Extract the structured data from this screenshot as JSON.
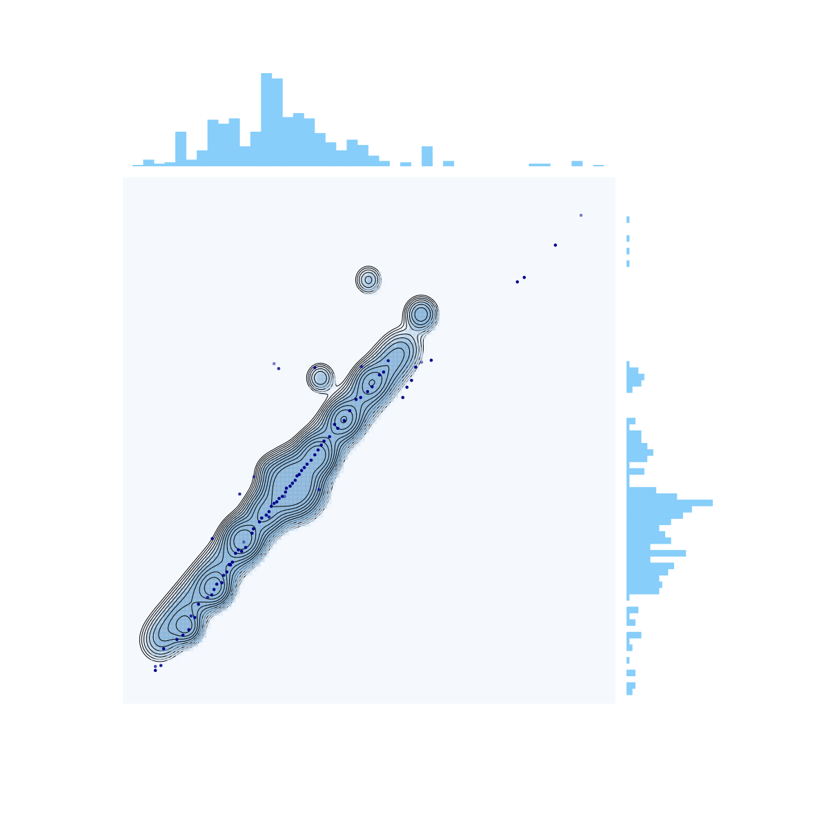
{
  "chart_data": {
    "type": "scatter",
    "title": "",
    "xlabel": "",
    "ylabel": "",
    "axes_visible": false,
    "grid": false,
    "xlim": [
      0,
      100
    ],
    "ylim": [
      0,
      100
    ],
    "colors": {
      "histogram": "#87cefa",
      "points": "#00008b",
      "contour_line": "#000000",
      "plot_background": "#f5f9fe",
      "kde_fill_low": "#eef4fb",
      "kde_fill_high": "#4a8ec4"
    },
    "scatter": {
      "x": [
        3.5,
        3.5,
        4.7,
        5.3,
        8.2,
        9.5,
        10.8,
        11.3,
        12.1,
        12.9,
        14.9,
        15.8,
        16.3,
        16.9,
        18.0,
        18.4,
        19.1,
        19.6,
        19.9,
        20.3,
        21.0,
        21.6,
        22.3,
        23.2,
        22.8,
        24.6,
        24.9,
        26.2,
        26.7,
        27.7,
        28.3,
        28.8,
        29.4,
        30.0,
        30.5,
        31.2,
        31.9,
        32.1,
        32.9,
        33.4,
        34.0,
        34.4,
        34.9,
        35.4,
        36.0,
        36.6,
        37.5,
        38.3,
        39.0,
        39.7,
        40.3,
        41.5,
        42.6,
        43.3,
        44.7,
        45.9,
        47.3,
        48.3,
        49.8,
        50.8,
        52.4,
        53.3,
        54.3,
        57.5,
        58.4,
        59.4,
        60.3,
        61.6,
        63.7,
        82.5,
        84.0,
        90.8,
        96.4,
        15.9,
        21.9,
        25.0,
        28.3,
        31.7,
        38.3,
        29.4,
        30.4,
        48.5,
        39.2
      ],
      "y": [
        4.1,
        3.3,
        4.3,
        7.7,
        9.6,
        10.5,
        11.6,
        14.4,
        14.1,
        16.8,
        18.2,
        18.7,
        19.8,
        20.9,
        21.2,
        22.7,
        23.4,
        24.9,
        24.8,
        25.4,
        27.2,
        27.9,
        27.6,
        28.4,
        29.5,
        31.3,
        32.2,
        33.6,
        34.4,
        35.0,
        35.7,
        36.8,
        37.4,
        37.7,
        38.4,
        38.8,
        39.7,
        40.5,
        40.9,
        41.5,
        42.1,
        43.0,
        43.3,
        44.1,
        44.7,
        45.4,
        46.2,
        47.3,
        48.3,
        49.3,
        50.1,
        51.0,
        53.5,
        52.7,
        54.3,
        56.3,
        58.6,
        59.0,
        60.2,
        61.2,
        63.6,
        64.2,
        66.5,
        59.0,
        61.1,
        62.5,
        65.2,
        66.2,
        66.6,
        82.6,
        83.5,
        90.1,
        96.2,
        30.2,
        39.3,
        42.8,
        34.6,
        38.8,
        65.1,
        65.9,
        64.9,
        65.3,
        40.2
      ],
      "alpha": [
        0.7,
        1,
        0.9,
        1,
        1,
        1,
        1,
        0.8,
        1,
        1,
        0.8,
        1,
        1,
        1,
        1,
        0.9,
        1,
        1,
        1,
        1,
        1,
        1,
        1,
        1,
        0.5,
        1,
        1,
        1,
        1,
        1,
        1,
        1,
        1,
        1,
        1,
        1,
        1,
        1,
        1,
        1,
        0.9,
        1,
        1,
        1,
        1,
        1,
        1,
        1,
        1,
        1,
        1,
        1,
        1,
        1,
        1,
        1,
        1,
        1,
        1,
        1,
        1,
        1,
        0.9,
        1,
        1,
        1,
        1,
        0.5,
        1,
        1,
        1,
        1,
        0.5,
        0.9,
        0.8,
        0.6,
        0.8,
        0.5,
        0.9,
        0.5,
        0.8,
        0.8,
        0.7
      ]
    },
    "contour_peaks": [
      {
        "x": 33.5,
        "y": 41.0,
        "weight": 0.85,
        "sigma": 3.2
      },
      {
        "x": 22.5,
        "y": 30.0,
        "weight": 0.45,
        "sigma": 2.2
      },
      {
        "x": 27.5,
        "y": 35.5,
        "weight": 0.22,
        "sigma": 2.2
      },
      {
        "x": 38.8,
        "y": 47.0,
        "weight": 0.45,
        "sigma": 2.2
      },
      {
        "x": 16.5,
        "y": 20.0,
        "weight": 0.32,
        "sigma": 2.0
      },
      {
        "x": 10.5,
        "y": 12.0,
        "weight": 0.22,
        "sigma": 1.8
      },
      {
        "x": 44.6,
        "y": 54.5,
        "weight": 0.3,
        "sigma": 2.0
      },
      {
        "x": 50.5,
        "y": 62.2,
        "weight": 0.18,
        "sigma": 2.0
      },
      {
        "x": 39.5,
        "y": 63.0,
        "weight": 0.12,
        "sigma": 1.8
      },
      {
        "x": 61.5,
        "y": 76.0,
        "weight": 0.2,
        "sigma": 2.0
      },
      {
        "x": 50.0,
        "y": 83.0,
        "weight": 0.1,
        "sigma": 1.8
      },
      {
        "x": 28.3,
        "y": 44.3,
        "weight": 0.06,
        "sigma": 1.6
      }
    ],
    "marginal_x_hist": {
      "counts": [
        1,
        5,
        2,
        3,
        26,
        5,
        12,
        35,
        32,
        36,
        15,
        26,
        70,
        66,
        37,
        40,
        36,
        25,
        18,
        12,
        20,
        16,
        8,
        4,
        0,
        3,
        0,
        15,
        0,
        4,
        0,
        0,
        0,
        0,
        0,
        0,
        0,
        2,
        2,
        0,
        0,
        4,
        0,
        1
      ]
    },
    "marginal_y_hist": {
      "counts": [
        2,
        3,
        0,
        3,
        0,
        1,
        0,
        2,
        1,
        5,
        0,
        3,
        1,
        4,
        0,
        1,
        11,
        12,
        11,
        14,
        16,
        8,
        20,
        8,
        15,
        13,
        11,
        15,
        19,
        22,
        29,
        17,
        10,
        1,
        1,
        6,
        1,
        7,
        9,
        7,
        5,
        5,
        1,
        3,
        0,
        0,
        0,
        0,
        2,
        5,
        6,
        4,
        1,
        0,
        0,
        0,
        0,
        0,
        0,
        0,
        0,
        0,
        0,
        0,
        0,
        0,
        0,
        0,
        1,
        0,
        1,
        0,
        1,
        0,
        0,
        1,
        0,
        0,
        0,
        0
      ]
    }
  }
}
